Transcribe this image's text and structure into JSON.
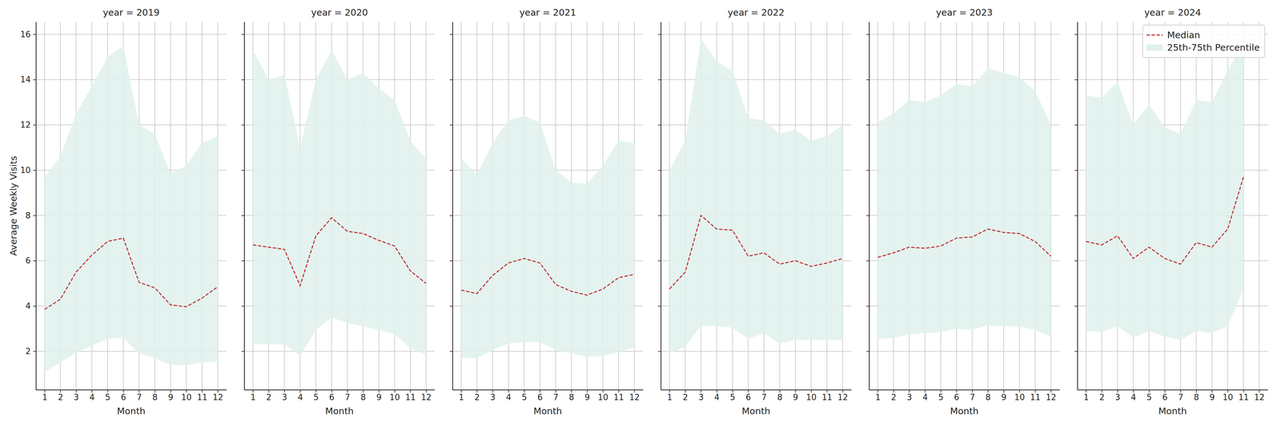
{
  "chart_data": [
    {
      "type": "line",
      "title": "year = 2019",
      "x_label": "Month",
      "y_label": "Average Weekly Visits",
      "x": [
        1,
        2,
        3,
        4,
        5,
        6,
        7,
        8,
        9,
        10,
        11,
        12
      ],
      "xlim": [
        0.45,
        12.55
      ],
      "xticks": [
        1,
        2,
        3,
        4,
        5,
        6,
        7,
        8,
        9,
        10,
        11,
        12
      ],
      "ylim": [
        0.3,
        16.55
      ],
      "yticks": [
        2,
        4,
        6,
        8,
        10,
        12,
        14,
        16
      ],
      "grid": true,
      "series": [
        {
          "name": "Median",
          "type": "line",
          "color": "#c03d3e",
          "line_style": "dashed",
          "values": [
            3.85,
            4.3,
            5.5,
            6.25,
            6.85,
            7.0,
            5.05,
            4.8,
            4.05,
            3.97,
            4.35,
            4.85
          ]
        },
        {
          "name": "25th-75th Percentile",
          "type": "area",
          "color": "#dff1ec",
          "low": [
            1.1,
            1.5,
            1.95,
            2.25,
            2.55,
            2.6,
            1.9,
            1.7,
            1.4,
            1.38,
            1.5,
            1.55
          ],
          "high": [
            9.7,
            10.6,
            12.5,
            13.7,
            15.0,
            15.5,
            12.0,
            11.6,
            9.85,
            10.2,
            11.2,
            11.5
          ]
        }
      ]
    },
    {
      "type": "line",
      "title": "year = 2020",
      "x_label": "Month",
      "x": [
        1,
        2,
        3,
        4,
        5,
        6,
        7,
        8,
        9,
        10,
        11,
        12
      ],
      "xlim": [
        0.45,
        12.55
      ],
      "xticks": [
        1,
        2,
        3,
        4,
        5,
        6,
        7,
        8,
        9,
        10,
        11,
        12
      ],
      "ylim": [
        0.3,
        16.55
      ],
      "yticks": [
        2,
        4,
        6,
        8,
        10,
        12,
        14,
        16
      ],
      "grid": true,
      "tick_labels": "x",
      "series": [
        {
          "name": "Median",
          "type": "line",
          "color": "#c03d3e",
          "line_style": "dashed",
          "values": [
            6.7,
            6.6,
            6.5,
            4.9,
            7.1,
            7.9,
            7.3,
            7.2,
            6.9,
            6.65,
            5.55,
            5.0
          ]
        },
        {
          "name": "25th-75th Percentile",
          "type": "area",
          "color": "#dff1ec",
          "low": [
            2.35,
            2.3,
            2.3,
            1.8,
            2.95,
            3.5,
            3.25,
            3.1,
            2.95,
            2.75,
            2.15,
            1.85
          ],
          "high": [
            15.3,
            14.0,
            14.2,
            11.0,
            14.0,
            15.3,
            14.0,
            14.3,
            13.6,
            13.1,
            11.3,
            10.5
          ]
        }
      ]
    },
    {
      "type": "line",
      "title": "year = 2021",
      "x_label": "Month",
      "x": [
        1,
        2,
        3,
        4,
        5,
        6,
        7,
        8,
        9,
        10,
        11,
        12
      ],
      "xlim": [
        0.45,
        12.55
      ],
      "xticks": [
        1,
        2,
        3,
        4,
        5,
        6,
        7,
        8,
        9,
        10,
        11,
        12
      ],
      "ylim": [
        0.3,
        16.55
      ],
      "yticks": [
        2,
        4,
        6,
        8,
        10,
        12,
        14,
        16
      ],
      "grid": true,
      "tick_labels": "x",
      "series": [
        {
          "name": "Median",
          "type": "line",
          "color": "#c03d3e",
          "line_style": "dashed",
          "values": [
            4.7,
            4.55,
            5.35,
            5.9,
            6.1,
            5.9,
            4.95,
            4.65,
            4.48,
            4.75,
            5.25,
            5.4
          ]
        },
        {
          "name": "25th-75th Percentile",
          "type": "area",
          "color": "#dff1ec",
          "low": [
            1.7,
            1.7,
            2.05,
            2.35,
            2.4,
            2.4,
            2.05,
            1.9,
            1.75,
            1.8,
            1.95,
            2.2
          ],
          "high": [
            10.5,
            9.8,
            11.2,
            12.2,
            12.4,
            12.1,
            10.0,
            9.45,
            9.4,
            10.2,
            11.3,
            11.2
          ]
        }
      ]
    },
    {
      "type": "line",
      "title": "year = 2022",
      "x_label": "Month",
      "x": [
        1,
        2,
        3,
        4,
        5,
        6,
        7,
        8,
        9,
        10,
        11,
        12
      ],
      "xlim": [
        0.45,
        12.55
      ],
      "xticks": [
        1,
        2,
        3,
        4,
        5,
        6,
        7,
        8,
        9,
        10,
        11,
        12
      ],
      "ylim": [
        0.3,
        16.55
      ],
      "yticks": [
        2,
        4,
        6,
        8,
        10,
        12,
        14,
        16
      ],
      "grid": true,
      "tick_labels": "x",
      "series": [
        {
          "name": "Median",
          "type": "line",
          "color": "#c03d3e",
          "line_style": "dashed",
          "values": [
            4.75,
            5.5,
            8.0,
            7.4,
            7.35,
            6.2,
            6.35,
            5.85,
            6.0,
            5.75,
            5.9,
            6.1
          ]
        },
        {
          "name": "25th-75th Percentile",
          "type": "area",
          "color": "#dff1ec",
          "low": [
            1.9,
            2.2,
            3.15,
            3.1,
            3.05,
            2.55,
            2.8,
            2.35,
            2.5,
            2.5,
            2.5,
            2.5
          ],
          "high": [
            10.0,
            11.3,
            15.8,
            14.8,
            14.4,
            12.3,
            12.2,
            11.6,
            11.8,
            11.3,
            11.5,
            12.0
          ]
        }
      ]
    },
    {
      "type": "line",
      "title": "year = 2023",
      "x_label": "Month",
      "x": [
        1,
        2,
        3,
        4,
        5,
        6,
        7,
        8,
        9,
        10,
        11,
        12
      ],
      "xlim": [
        0.45,
        12.55
      ],
      "xticks": [
        1,
        2,
        3,
        4,
        5,
        6,
        7,
        8,
        9,
        10,
        11,
        12
      ],
      "ylim": [
        0.3,
        16.55
      ],
      "yticks": [
        2,
        4,
        6,
        8,
        10,
        12,
        14,
        16
      ],
      "grid": true,
      "tick_labels": "x",
      "series": [
        {
          "name": "Median",
          "type": "line",
          "color": "#c03d3e",
          "line_style": "dashed",
          "values": [
            6.15,
            6.35,
            6.6,
            6.55,
            6.65,
            7.0,
            7.05,
            7.4,
            7.25,
            7.2,
            6.85,
            6.2
          ]
        },
        {
          "name": "25th-75th Percentile",
          "type": "area",
          "color": "#dff1ec",
          "low": [
            2.55,
            2.6,
            2.75,
            2.8,
            2.85,
            3.0,
            2.95,
            3.15,
            3.1,
            3.1,
            2.95,
            2.65
          ],
          "high": [
            12.1,
            12.5,
            13.1,
            13.0,
            13.3,
            13.8,
            13.7,
            14.5,
            14.3,
            14.1,
            13.5,
            12.0
          ]
        }
      ]
    },
    {
      "type": "line",
      "title": "year = 2024",
      "x_label": "Month",
      "x": [
        1,
        2,
        3,
        4,
        5,
        6,
        7,
        8,
        9,
        10,
        11
      ],
      "xlim": [
        0.45,
        12.55
      ],
      "xticks": [
        1,
        2,
        3,
        4,
        5,
        6,
        7,
        8,
        9,
        10,
        11,
        12
      ],
      "ylim": [
        0.3,
        16.55
      ],
      "yticks": [
        2,
        4,
        6,
        8,
        10,
        12,
        14,
        16
      ],
      "grid": true,
      "tick_labels": "x",
      "legend": "upper right",
      "series": [
        {
          "name": "Median",
          "type": "line",
          "color": "#c03d3e",
          "line_style": "dashed",
          "values": [
            6.85,
            6.7,
            7.1,
            6.1,
            6.6,
            6.1,
            5.85,
            6.8,
            6.6,
            7.4,
            9.7
          ]
        },
        {
          "name": "25th-75th Percentile",
          "type": "area",
          "color": "#dff1ec",
          "low": [
            2.9,
            2.85,
            3.1,
            2.6,
            2.9,
            2.65,
            2.5,
            2.9,
            2.8,
            3.1,
            4.8
          ],
          "high": [
            13.3,
            13.2,
            13.9,
            12.0,
            12.9,
            11.9,
            11.6,
            13.1,
            13.0,
            14.4,
            15.6
          ]
        }
      ]
    }
  ]
}
